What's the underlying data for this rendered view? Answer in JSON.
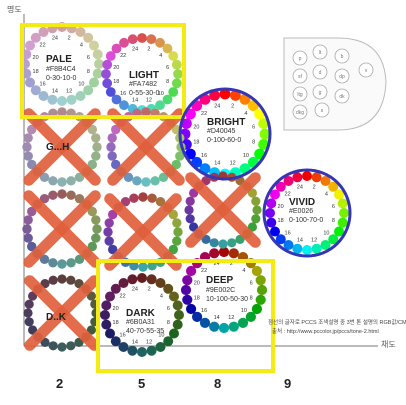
{
  "axis": {
    "y_label": "명도",
    "x_label": "채도"
  },
  "columns": [
    "2",
    "5",
    "8",
    "9"
  ],
  "tones": [
    {
      "name": "PALE",
      "code": "#F8B4C4",
      "cmyk": "0-30-10-0",
      "highlight": "yellow",
      "crossed": false
    },
    {
      "name": "LIGHT",
      "code": "#FA7482",
      "cmyk": "0-55-30-0",
      "highlight": "yellow",
      "crossed": false
    },
    {
      "name": "BRIGHT",
      "code": "#D40045",
      "cmyk": "0-100-60-0",
      "highlight": "blue",
      "crossed": false
    },
    {
      "name": "VIVID",
      "code": "#E0026",
      "cmyk": "0-100-70-0",
      "highlight": "blue",
      "crossed": false
    },
    {
      "name": "DEEP",
      "code": "#9E002C",
      "cmyk": "10-100-50-30",
      "highlight": "yellow",
      "crossed": false
    },
    {
      "name": "DARK",
      "code": "#6B0A31",
      "cmyk": "40-70-55-35",
      "highlight": "yellow",
      "crossed": false
    },
    {
      "name": "G...H",
      "code": "",
      "cmyk": "",
      "highlight": "none",
      "crossed": true
    },
    {
      "name": "",
      "code": "",
      "cmyk": "",
      "highlight": "none",
      "crossed": true
    },
    {
      "name": "",
      "code": "",
      "cmyk": "",
      "highlight": "none",
      "crossed": true
    },
    {
      "name": "",
      "code": "",
      "cmyk": "",
      "highlight": "none",
      "crossed": true
    },
    {
      "name": "",
      "code": "",
      "cmyk": "",
      "highlight": "none",
      "crossed": true
    },
    {
      "name": "D..K",
      "code": "",
      "cmyk": "",
      "highlight": "none",
      "crossed": true
    }
  ],
  "tone_map_labels": [
    "p",
    "lt",
    "b",
    "v",
    "sf",
    "d",
    "dp",
    "ltg",
    "g",
    "dk",
    "dkg",
    "s"
  ],
  "footnote": {
    "line1": "점선의 글자로 PCCS 조색설명 중 3번 톤 설명의 RGB값/CMYK값",
    "line2": "출처 : http://www.pccolor.jp/pccs/tone-2.html"
  },
  "colors": {
    "highlight_yellow": "#F5EB14",
    "highlight_blue": "#3535B5",
    "cross": "#E0603C"
  }
}
